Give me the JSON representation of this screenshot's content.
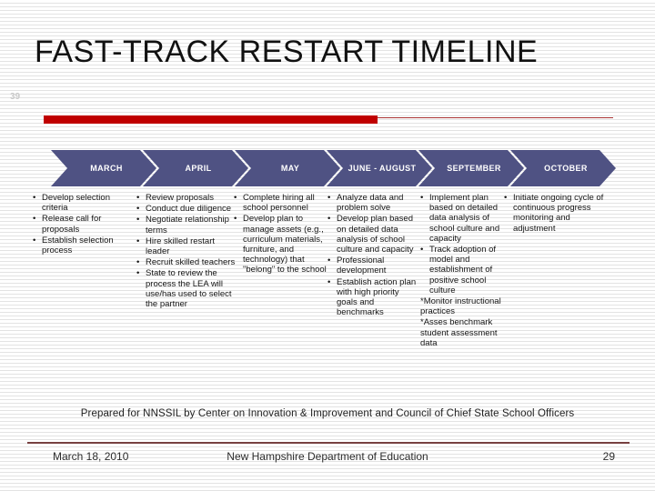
{
  "slide": {
    "title": "FAST-TRACK RESTART TIMELINE",
    "artifact_number": "39",
    "prepared_line": "Prepared for NNSSIL by Center on Innovation & Improvement and Council of Chief State School Officers",
    "footer": {
      "date": "March 18, 2010",
      "organization": "New Hampshire Department of Education",
      "page_number": "29"
    },
    "colors": {
      "accent_red": "#c00000",
      "chevron": "#4f5283",
      "footer_rule": "#774040"
    }
  },
  "timeline": {
    "phases": [
      {
        "month": "MARCH",
        "items": [
          "Develop selection criteria",
          "Release call for proposals",
          "Establish selection process"
        ]
      },
      {
        "month": "APRIL",
        "items": [
          "Review proposals",
          "Conduct due diligence",
          "Negotiate relationship terms",
          "Hire skilled restart leader",
          "Recruit skilled teachers",
          "State to review the process the LEA will use/has used to select the partner"
        ]
      },
      {
        "month": "MAY",
        "items": [
          "Complete hiring all school personnel",
          "Develop plan to manage assets (e.g., curriculum materials, furniture, and technology) that \"belong\" to the school"
        ]
      },
      {
        "month": "JUNE - AUGUST",
        "items": [
          "Analyze data and problem solve",
          "Develop plan based on detailed data analysis of school culture and capacity",
          "Professional development",
          "Establish action plan with high priority goals and benchmarks"
        ]
      },
      {
        "month": "SEPTEMBER",
        "items": [
          "Implement plan based on detailed data analysis of school culture and capacity",
          "Track adoption of model and establishment of positive school culture",
          "*Monitor instructional practices",
          "*Asses benchmark student assessment data"
        ]
      },
      {
        "month": "OCTOBER",
        "items": [
          "Initiate ongoing cycle of continuous progress monitoring and adjustment"
        ]
      }
    ]
  }
}
